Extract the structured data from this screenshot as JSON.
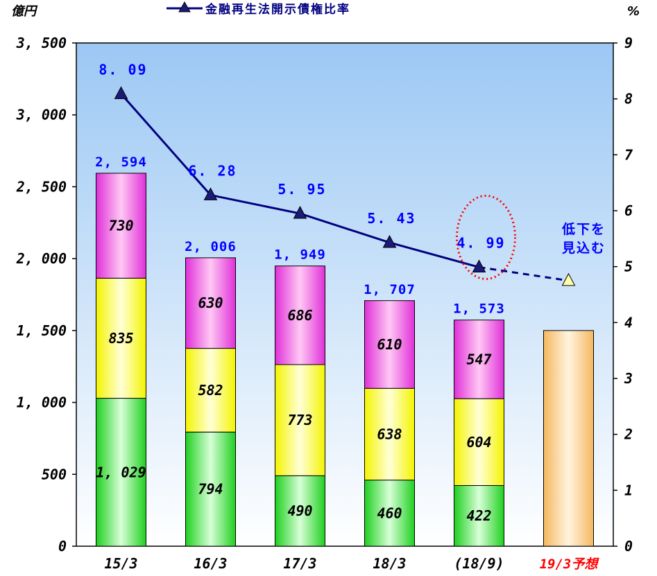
{
  "chart_data": {
    "type": "bar",
    "stacked": true,
    "categories": [
      "15/3",
      "16/3",
      "17/3",
      "18/3",
      "(18/9)",
      "19/3予想"
    ],
    "highlight_category_color": "#ff0000",
    "left_axis": {
      "unit": "億円",
      "ylim": [
        0,
        3500
      ],
      "ticks": [
        0,
        500,
        1000,
        1500,
        2000,
        2500,
        3000,
        3500
      ],
      "tick_labels": [
        "0",
        "500",
        "1, 000",
        "1, 500",
        "2, 000",
        "2, 500",
        "3, 000",
        "3, 500"
      ]
    },
    "right_axis": {
      "unit": "%",
      "ylim": [
        0,
        9
      ],
      "ticks": [
        0,
        1,
        2,
        3,
        4,
        5,
        6,
        7,
        8,
        9
      ]
    },
    "stack_series": [
      {
        "values": [
          1029,
          794,
          490,
          460,
          422,
          null
        ],
        "labels": [
          "1, 029",
          "794",
          "490",
          "460",
          "422",
          ""
        ],
        "color": "#33ee33"
      },
      {
        "values": [
          835,
          582,
          773,
          638,
          604,
          null
        ],
        "labels": [
          "835",
          "582",
          "773",
          "638",
          "604",
          ""
        ],
        "color": "#ffff33"
      },
      {
        "values": [
          730,
          630,
          686,
          610,
          547,
          null
        ],
        "labels": [
          "730",
          "630",
          "686",
          "610",
          "547",
          ""
        ],
        "color": "#ee33dd"
      }
    ],
    "forecast_bar": {
      "category": "19/3予想",
      "value": 1500,
      "color": "#f8c878"
    },
    "totals": {
      "values": [
        2594,
        2006,
        1949,
        1707,
        1573
      ],
      "labels": [
        "2, 594",
        "2, 006",
        "1, 949",
        "1, 707",
        "1, 573"
      ]
    },
    "line_series": {
      "name": "金融再生法開示債権比率",
      "values": [
        8.09,
        6.28,
        5.95,
        5.43,
        4.99
      ],
      "labels": [
        "8. 09",
        "6. 28",
        "5. 95",
        "5. 43",
        "4. 99"
      ],
      "projected_value": 4.75,
      "color": "#000080",
      "projected_marker_color": "#ffffaa"
    },
    "annotation": {
      "line1": "低下を",
      "line2": "見込む",
      "color": "#0000ff"
    },
    "highlight_circle_color": "#ff0000",
    "legend": "top",
    "grid": false,
    "background_gradient": [
      "#9cc8f4",
      "#ffffff"
    ]
  }
}
